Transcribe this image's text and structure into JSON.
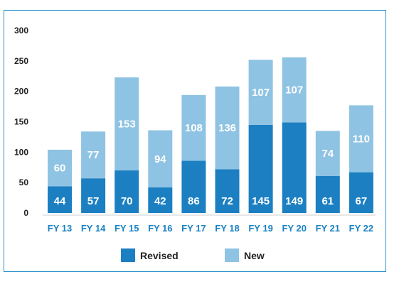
{
  "colors": {
    "revised": "#1b7fc1",
    "new": "#8fc3e3",
    "border": "#2a94c9",
    "xtick": "#1a82c4"
  },
  "chart_data": {
    "type": "bar",
    "stacked": true,
    "categories": [
      "FY 13",
      "FY 14",
      "FY 15",
      "FY 16",
      "FY 17",
      "FY 18",
      "FY 19",
      "FY 20",
      "FY 21",
      "FY 22"
    ],
    "series": [
      {
        "name": "Revised",
        "values": [
          44,
          57,
          70,
          42,
          86,
          72,
          145,
          149,
          61,
          67
        ]
      },
      {
        "name": "New",
        "values": [
          60,
          77,
          153,
          94,
          108,
          136,
          107,
          107,
          74,
          110
        ]
      }
    ],
    "yticks": [
      0,
      50,
      100,
      150,
      200,
      250,
      300
    ],
    "ylim": [
      0,
      300
    ],
    "grid": false,
    "legend": "bottom-center",
    "title": "",
    "xlabel": "",
    "ylabel": ""
  }
}
